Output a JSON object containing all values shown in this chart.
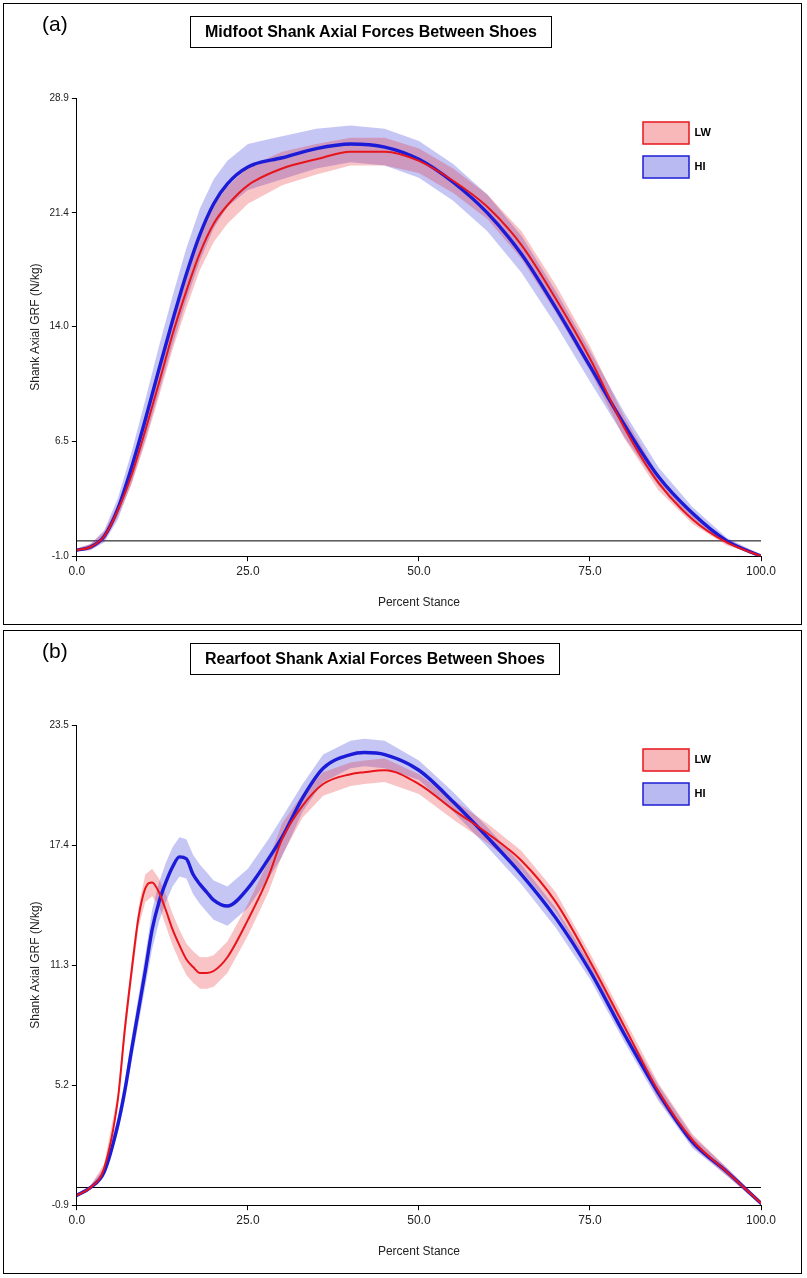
{
  "chart_data": [
    {
      "type": "line",
      "title": "Midfoot Shank Axial Forces Between Shoes",
      "annotations": [
        "(a)"
      ],
      "xlabel": "Percent Stance",
      "ylabel": "Shank Axial GRF (N/kg)",
      "xlim": [
        0,
        100
      ],
      "xticks": [
        {
          "value": 0,
          "label": "0.0"
        },
        {
          "value": 25,
          "label": "25.0"
        },
        {
          "value": 50,
          "label": "50.0"
        },
        {
          "value": 75,
          "label": "75.0"
        },
        {
          "value": 100,
          "label": "100.0"
        }
      ],
      "ylim": [
        -1,
        28.9
      ],
      "yticks": [
        {
          "value": -1,
          "label": "-1.0"
        },
        6.5,
        {
          "value": 14,
          "label": "14.0"
        },
        21.4,
        28.9
      ],
      "grid": false,
      "legend": "top right",
      "marker": "none",
      "line_style": "solid",
      "ref_lines": [
        {
          "axis": "y",
          "value": 0,
          "color": "#000000"
        }
      ],
      "x": [
        0,
        2,
        4,
        6,
        8,
        10,
        12,
        14,
        16,
        18,
        20,
        22,
        25,
        30,
        35,
        40,
        45,
        50,
        55,
        60,
        65,
        70,
        75,
        80,
        85,
        90,
        95,
        100
      ],
      "series": [
        {
          "name": "LW",
          "color": "#e8141c",
          "values": [
            -0.6,
            -0.4,
            0.3,
            2.0,
            4.3,
            7.2,
            10.3,
            13.5,
            16.3,
            18.8,
            20.7,
            21.9,
            23.2,
            24.3,
            24.9,
            25.4,
            25.4,
            24.8,
            23.5,
            21.8,
            19.3,
            15.8,
            11.9,
            7.4,
            3.8,
            1.4,
            -0.1,
            -1.0
          ],
          "lower": [
            -0.7,
            -0.6,
            0.0,
            1.6,
            3.7,
            6.4,
            9.4,
            12.5,
            15.2,
            17.7,
            19.5,
            20.7,
            22.0,
            23.2,
            23.9,
            24.5,
            24.5,
            24.0,
            22.7,
            21.0,
            18.4,
            14.9,
            11.1,
            6.7,
            3.3,
            1.1,
            -0.3,
            -1.0
          ],
          "upper": [
            -0.5,
            -0.2,
            0.6,
            2.4,
            4.9,
            8.0,
            11.2,
            14.5,
            17.4,
            19.9,
            21.9,
            23.1,
            24.4,
            25.4,
            25.9,
            26.3,
            26.3,
            25.6,
            24.3,
            22.6,
            20.2,
            16.7,
            12.7,
            8.1,
            4.3,
            1.7,
            0.1,
            -0.9
          ]
        },
        {
          "name": "HI",
          "color": "#1c1cd8",
          "values": [
            -0.6,
            -0.4,
            0.3,
            2.1,
            4.8,
            7.9,
            11.2,
            14.4,
            17.4,
            20.0,
            22.0,
            23.3,
            24.4,
            25.0,
            25.6,
            25.9,
            25.7,
            24.9,
            23.4,
            21.4,
            18.7,
            15.2,
            11.4,
            7.6,
            4.2,
            1.8,
            0.0,
            -1.0
          ],
          "lower": [
            -0.7,
            -0.6,
            -0.1,
            1.4,
            3.8,
            6.6,
            9.7,
            12.8,
            15.7,
            18.3,
            20.4,
            21.8,
            22.9,
            23.6,
            24.3,
            24.7,
            24.5,
            23.7,
            22.2,
            20.2,
            17.5,
            14.1,
            10.4,
            6.8,
            3.6,
            1.4,
            -0.2,
            -1.0
          ],
          "upper": [
            -0.5,
            -0.2,
            0.7,
            2.8,
            5.8,
            9.2,
            12.7,
            16.0,
            19.1,
            21.7,
            23.6,
            24.8,
            25.9,
            26.4,
            26.9,
            27.1,
            26.9,
            26.1,
            24.6,
            22.6,
            19.9,
            16.3,
            12.4,
            8.4,
            4.8,
            2.2,
            0.2,
            -0.9
          ]
        }
      ]
    },
    {
      "type": "line",
      "title": "Rearfoot Shank Axial Forces Between Shoes",
      "annotations": [
        "(b)"
      ],
      "xlabel": "Percent Stance",
      "ylabel": "Shank Axial GRF (N/kg)",
      "xlim": [
        0,
        100
      ],
      "xticks": [
        {
          "value": 0,
          "label": "0.0"
        },
        {
          "value": 25,
          "label": "25.0"
        },
        {
          "value": 50,
          "label": "50.0"
        },
        {
          "value": 75,
          "label": "75.0"
        },
        {
          "value": 100,
          "label": "100.0"
        }
      ],
      "ylim": [
        -0.9,
        23.5
      ],
      "yticks": [
        -0.9,
        5.2,
        11.3,
        17.4,
        23.5
      ],
      "grid": false,
      "legend": "top right",
      "marker": "none",
      "line_style": "solid",
      "ref_lines": [
        {
          "axis": "y",
          "value": 0,
          "color": "#000000"
        }
      ],
      "x": [
        0,
        2,
        4,
        6,
        7,
        8,
        9,
        10,
        11,
        12,
        13,
        14,
        15,
        16,
        17,
        18,
        19,
        20,
        22,
        25,
        28,
        30,
        33,
        36,
        40,
        42,
        45,
        50,
        55,
        60,
        65,
        70,
        75,
        80,
        85,
        90,
        95,
        100
      ],
      "series": [
        {
          "name": "LW",
          "color": "#e8141c",
          "values": [
            -0.4,
            0.0,
            1.0,
            4.5,
            8.0,
            11.0,
            13.7,
            15.2,
            15.5,
            15.0,
            14.1,
            13.1,
            12.3,
            11.6,
            11.2,
            10.9,
            10.9,
            11.0,
            11.7,
            13.6,
            15.8,
            17.7,
            19.4,
            20.5,
            21.0,
            21.1,
            21.2,
            20.5,
            19.2,
            18.0,
            16.6,
            14.5,
            11.5,
            8.2,
            4.9,
            2.4,
            0.8,
            -0.8
          ],
          "lower": [
            -0.5,
            -0.1,
            0.8,
            4.2,
            7.5,
            10.5,
            13.2,
            14.5,
            14.8,
            14.3,
            13.3,
            12.3,
            11.5,
            10.8,
            10.4,
            10.1,
            10.1,
            10.2,
            10.9,
            12.8,
            15.0,
            16.9,
            18.8,
            19.9,
            20.4,
            20.5,
            20.6,
            20.0,
            18.7,
            17.5,
            16.1,
            14.0,
            11.1,
            7.8,
            4.5,
            2.1,
            0.6,
            -0.9
          ],
          "upper": [
            -0.3,
            0.1,
            1.2,
            4.8,
            8.5,
            11.5,
            14.2,
            15.9,
            16.2,
            15.7,
            14.9,
            13.9,
            13.1,
            12.4,
            12.0,
            11.7,
            11.7,
            11.8,
            12.5,
            14.4,
            16.6,
            18.5,
            20.0,
            21.1,
            21.6,
            21.7,
            21.8,
            21.0,
            19.7,
            18.5,
            17.1,
            15.0,
            11.9,
            8.6,
            5.3,
            2.7,
            1.0,
            -0.7
          ]
        },
        {
          "name": "HI",
          "color": "#1c1cd8",
          "values": [
            -0.4,
            0.0,
            0.8,
            3.2,
            4.9,
            7.0,
            9.0,
            11.0,
            13.1,
            14.5,
            15.5,
            16.3,
            16.8,
            16.7,
            15.9,
            15.4,
            15.0,
            14.6,
            14.3,
            15.2,
            16.7,
            17.8,
            19.8,
            21.3,
            22.0,
            22.1,
            22.0,
            21.2,
            19.6,
            17.8,
            15.9,
            13.7,
            11.0,
            7.8,
            4.8,
            2.3,
            0.8,
            -0.8
          ],
          "lower": [
            -0.5,
            -0.1,
            0.6,
            2.8,
            4.4,
            6.4,
            8.3,
            10.2,
            12.1,
            13.5,
            14.5,
            15.3,
            15.8,
            15.7,
            14.9,
            14.4,
            14.0,
            13.6,
            13.3,
            14.2,
            15.7,
            16.8,
            19.1,
            20.6,
            21.3,
            21.4,
            21.3,
            20.7,
            19.1,
            17.3,
            15.4,
            13.2,
            10.6,
            7.4,
            4.4,
            2.0,
            0.6,
            -0.9
          ],
          "upper": [
            -0.3,
            0.1,
            1.0,
            3.6,
            5.4,
            7.6,
            9.7,
            11.8,
            14.1,
            15.5,
            16.5,
            17.3,
            17.8,
            17.7,
            16.9,
            16.4,
            16.0,
            15.6,
            15.3,
            16.2,
            17.7,
            18.8,
            20.5,
            22.0,
            22.7,
            22.8,
            22.7,
            21.7,
            20.1,
            18.3,
            16.4,
            14.2,
            11.4,
            8.2,
            5.2,
            2.6,
            1.0,
            -0.7
          ]
        }
      ]
    }
  ]
}
